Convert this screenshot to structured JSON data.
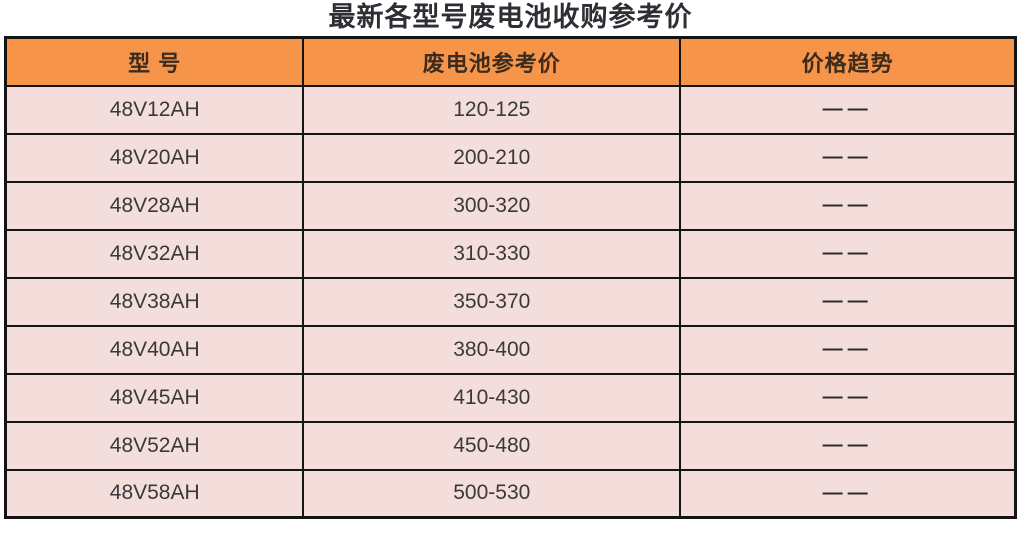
{
  "chart_data": {
    "type": "table",
    "title": "最新各型号废电池收购参考价",
    "columns": [
      "型 号",
      "废电池参考价",
      "价格趋势"
    ],
    "rows": [
      [
        "48V12AH",
        "120-125",
        "——"
      ],
      [
        "48V20AH",
        "200-210",
        "——"
      ],
      [
        "48V28AH",
        "300-320",
        "——"
      ],
      [
        "48V32AH",
        "310-330",
        "——"
      ],
      [
        "48V38AH",
        "350-370",
        "——"
      ],
      [
        "48V40AH",
        "380-400",
        "——"
      ],
      [
        "48V45AH",
        "410-430",
        "——"
      ],
      [
        "48V52AH",
        "450-480",
        "——"
      ],
      [
        "48V58AH",
        "500-530",
        "——"
      ]
    ],
    "layout": {
      "header_position": "top",
      "grid": "on",
      "row_count": 9,
      "column_count": 3
    }
  },
  "colors": {
    "header_bg": "#F6954A",
    "row_bg": "#F4DEDB",
    "border": "#141414",
    "title_text": "#2E2E34",
    "header_text": "#3D2C1E",
    "cell_text": "#39393B"
  }
}
